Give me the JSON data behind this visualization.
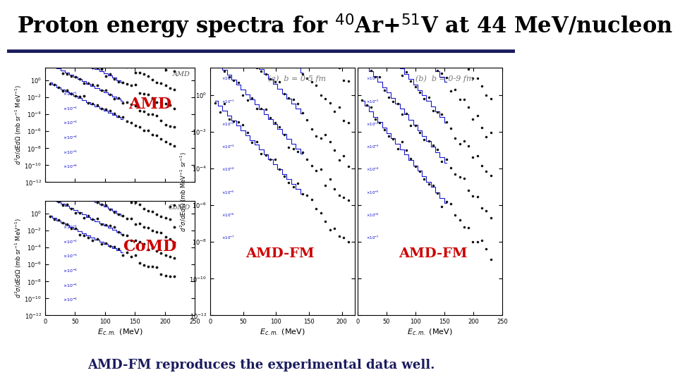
{
  "title": "Proton energy spectra for $^{40}$Ar+$^{51}$V at 44 MeV/nucleon",
  "title_fontsize": 22,
  "title_color": "#000000",
  "slide_bg": "#ffffff",
  "header_bg": "#ffffff",
  "border_color": "#1a1a5e",
  "footer_text": "AMD-FM reproduces the experimental data well.",
  "footer_color": "#1a1a5e",
  "footer_fontsize": 13,
  "label_amd_color": "#cc0000",
  "label_comd_color": "#cc0000",
  "label_amdfm_color": "#cc0000",
  "plot_bg": "#ffffff",
  "dot_color": "#111111",
  "line_color": "#0000cc",
  "ylabel_left": "$d^2\\sigma/dEd\\Omega$ (mb sr$^{-1}$ MeV$^{-1}$)",
  "ylabel_right": "$d^2\\sigma/dEd\\Omega$ (mb MeV$^{-1}$ sr$^{-1}$)",
  "xlabel": "$E_{c.m.}$ (MeV)",
  "scale_labels_amd": [
    "",
    "\\times10^{-1}",
    "\\times10^{-2}",
    "\\times10^{-3}",
    "\\times10^{-4}",
    "\\times10^{-5}",
    "\\times10^{-6}"
  ],
  "scale_labels_right": [
    "\\times10^{0}",
    "\\times10^{-1}",
    "\\times10^{-2}",
    "\\times10^{-3}",
    "\\times10^{-4}",
    "\\times10^{-5}",
    "\\times10^{-6}",
    "\\times10^{-7}"
  ]
}
